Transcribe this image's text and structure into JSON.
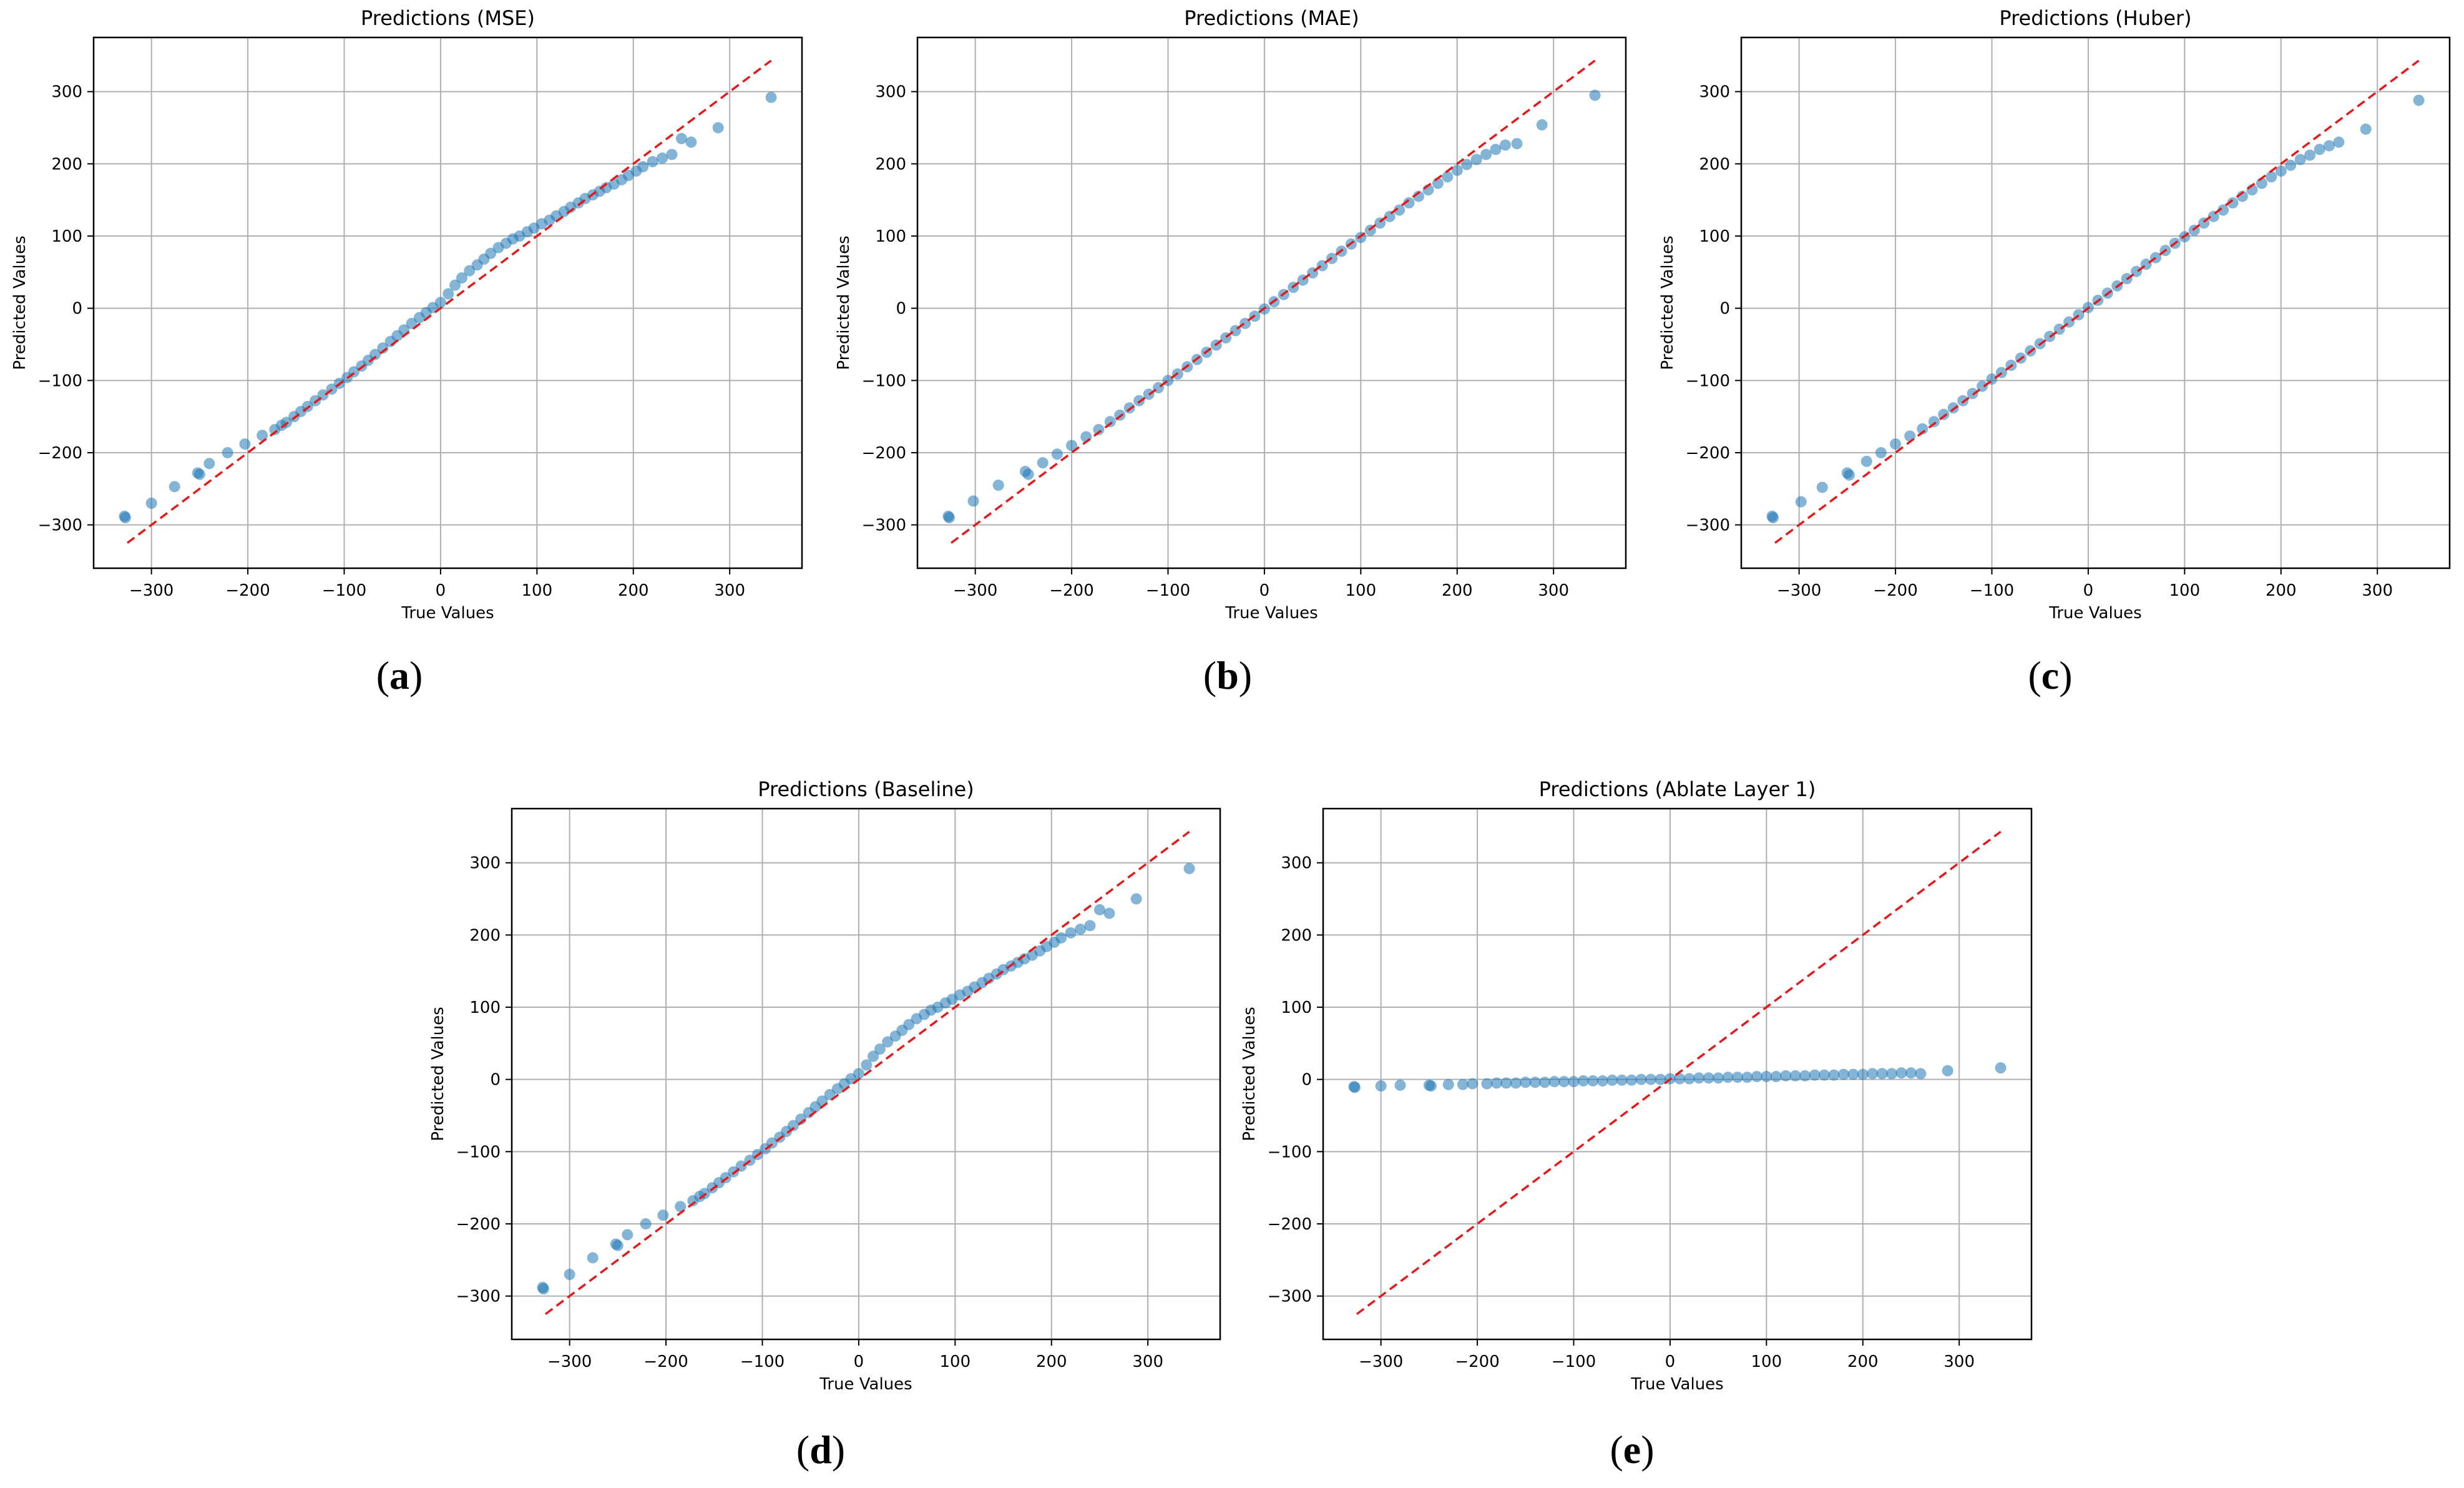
{
  "figure": {
    "captions": [
      "(a)",
      "(b)",
      "(c)",
      "(d)",
      "(e)"
    ],
    "caption_letters": [
      "a",
      "b",
      "c",
      "d",
      "e"
    ]
  },
  "chart_data": [
    {
      "type": "scatter",
      "title": "Predictions (MSE)",
      "xlabel": "True Values",
      "ylabel": "Predicted Values",
      "xlim": [
        -360,
        375
      ],
      "ylim": [
        -360,
        375
      ],
      "xticks": [
        -300,
        -200,
        -100,
        0,
        100,
        200,
        300
      ],
      "yticks": [
        -300,
        -200,
        -100,
        0,
        100,
        200,
        300
      ],
      "xtick_labels": [
        "−300",
        "−200",
        "−100",
        "0",
        "100",
        "200",
        "300"
      ],
      "ytick_labels": [
        "−300",
        "−200",
        "−100",
        "0",
        "100",
        "200",
        "300"
      ],
      "grid": true,
      "reference_line": {
        "from": [
          -325,
          -325
        ],
        "to": [
          343,
          343
        ],
        "color": "#e31a1c",
        "style": "dashed"
      },
      "point_color": "#1f77b4",
      "x": [
        -328,
        -327,
        -300,
        -276,
        -252,
        -250,
        -240,
        -221,
        -203,
        -185,
        -172,
        -165,
        -160,
        -152,
        -145,
        -138,
        -130,
        -122,
        -113,
        -105,
        -97,
        -90,
        -82,
        -75,
        -68,
        -60,
        -52,
        -45,
        -38,
        -30,
        -22,
        -15,
        -8,
        0,
        8,
        15,
        22,
        30,
        38,
        45,
        52,
        60,
        68,
        75,
        82,
        90,
        97,
        105,
        113,
        120,
        128,
        135,
        143,
        150,
        158,
        165,
        172,
        180,
        188,
        195,
        203,
        210,
        220,
        230,
        240,
        250,
        260,
        288,
        343
      ],
      "y": [
        -288,
        -290,
        -270,
        -247,
        -228,
        -230,
        -215,
        -200,
        -188,
        -176,
        -168,
        -162,
        -158,
        -150,
        -143,
        -136,
        -128,
        -120,
        -112,
        -104,
        -96,
        -88,
        -80,
        -72,
        -64,
        -55,
        -46,
        -38,
        -30,
        -21,
        -13,
        -6,
        1,
        8,
        20,
        32,
        42,
        52,
        60,
        68,
        76,
        84,
        90,
        96,
        100,
        106,
        111,
        117,
        122,
        128,
        134,
        140,
        146,
        152,
        157,
        162,
        167,
        172,
        178,
        184,
        190,
        196,
        203,
        208,
        213,
        235,
        230,
        250,
        292
      ]
    },
    {
      "type": "scatter",
      "title": "Predictions (MAE)",
      "xlabel": "True Values",
      "ylabel": "Predicted Values",
      "xlim": [
        -360,
        375
      ],
      "ylim": [
        -360,
        375
      ],
      "xticks": [
        -300,
        -200,
        -100,
        0,
        100,
        200,
        300
      ],
      "yticks": [
        -300,
        -200,
        -100,
        0,
        100,
        200,
        300
      ],
      "xtick_labels": [
        "−300",
        "−200",
        "−100",
        "0",
        "100",
        "200",
        "300"
      ],
      "ytick_labels": [
        "−300",
        "−200",
        "−100",
        "0",
        "100",
        "200",
        "300"
      ],
      "grid": true,
      "reference_line": {
        "from": [
          -325,
          -325
        ],
        "to": [
          343,
          343
        ],
        "color": "#e31a1c",
        "style": "dashed"
      },
      "point_color": "#1f77b4",
      "x": [
        -328,
        -327,
        -302,
        -276,
        -248,
        -245,
        -230,
        -215,
        -200,
        -185,
        -172,
        -160,
        -150,
        -140,
        -130,
        -120,
        -110,
        -100,
        -90,
        -80,
        -70,
        -60,
        -50,
        -40,
        -30,
        -20,
        -10,
        0,
        10,
        20,
        30,
        40,
        50,
        60,
        70,
        80,
        90,
        100,
        110,
        120,
        130,
        140,
        150,
        160,
        170,
        180,
        190,
        200,
        210,
        220,
        230,
        240,
        250,
        262,
        288,
        343
      ],
      "y": [
        -288,
        -290,
        -267,
        -245,
        -226,
        -230,
        -214,
        -202,
        -190,
        -178,
        -168,
        -157,
        -148,
        -138,
        -128,
        -119,
        -110,
        -100,
        -91,
        -81,
        -71,
        -61,
        -51,
        -41,
        -31,
        -21,
        -11,
        -1,
        9,
        19,
        29,
        39,
        49,
        59,
        69,
        79,
        89,
        98,
        108,
        118,
        127,
        136,
        146,
        155,
        164,
        173,
        182,
        191,
        199,
        206,
        213,
        220,
        226,
        228,
        254,
        295
      ]
    },
    {
      "type": "scatter",
      "title": "Predictions (Huber)",
      "xlabel": "True Values",
      "ylabel": "Predicted Values",
      "xlim": [
        -360,
        375
      ],
      "ylim": [
        -360,
        375
      ],
      "xticks": [
        -300,
        -200,
        -100,
        0,
        100,
        200,
        300
      ],
      "yticks": [
        -300,
        -200,
        -100,
        0,
        100,
        200,
        300
      ],
      "xtick_labels": [
        "−300",
        "−200",
        "−100",
        "0",
        "100",
        "200",
        "300"
      ],
      "ytick_labels": [
        "−300",
        "−200",
        "−100",
        "0",
        "100",
        "200",
        "300"
      ],
      "grid": true,
      "reference_line": {
        "from": [
          -325,
          -325
        ],
        "to": [
          343,
          343
        ],
        "color": "#e31a1c",
        "style": "dashed"
      },
      "point_color": "#1f77b4",
      "x": [
        -328,
        -327,
        -298,
        -276,
        -250,
        -248,
        -230,
        -215,
        -200,
        -185,
        -172,
        -160,
        -150,
        -140,
        -130,
        -120,
        -110,
        -100,
        -90,
        -80,
        -70,
        -60,
        -50,
        -40,
        -30,
        -20,
        -10,
        0,
        10,
        20,
        30,
        40,
        50,
        60,
        70,
        80,
        90,
        100,
        110,
        120,
        130,
        140,
        150,
        160,
        170,
        180,
        190,
        200,
        210,
        220,
        230,
        240,
        250,
        260,
        288,
        343
      ],
      "y": [
        -288,
        -290,
        -268,
        -248,
        -228,
        -231,
        -212,
        -200,
        -188,
        -177,
        -167,
        -157,
        -147,
        -138,
        -128,
        -118,
        -108,
        -98,
        -89,
        -79,
        -69,
        -59,
        -49,
        -39,
        -29,
        -19,
        -9,
        1,
        11,
        21,
        31,
        41,
        51,
        61,
        70,
        80,
        90,
        99,
        108,
        118,
        127,
        136,
        146,
        155,
        164,
        173,
        182,
        190,
        198,
        206,
        212,
        220,
        225,
        230,
        248,
        288
      ]
    },
    {
      "type": "scatter",
      "title": "Predictions (Baseline)",
      "xlabel": "True Values",
      "ylabel": "Predicted Values",
      "xlim": [
        -360,
        375
      ],
      "ylim": [
        -360,
        375
      ],
      "xticks": [
        -300,
        -200,
        -100,
        0,
        100,
        200,
        300
      ],
      "yticks": [
        -300,
        -200,
        -100,
        0,
        100,
        200,
        300
      ],
      "xtick_labels": [
        "−300",
        "−200",
        "−100",
        "0",
        "100",
        "200",
        "300"
      ],
      "ytick_labels": [
        "−300",
        "−200",
        "−100",
        "0",
        "100",
        "200",
        "300"
      ],
      "grid": true,
      "reference_line": {
        "from": [
          -325,
          -325
        ],
        "to": [
          343,
          343
        ],
        "color": "#e31a1c",
        "style": "dashed"
      },
      "point_color": "#1f77b4",
      "x": [
        -328,
        -327,
        -300,
        -276,
        -252,
        -250,
        -240,
        -221,
        -203,
        -185,
        -172,
        -165,
        -160,
        -152,
        -145,
        -138,
        -130,
        -122,
        -113,
        -105,
        -97,
        -90,
        -82,
        -75,
        -68,
        -60,
        -52,
        -45,
        -38,
        -30,
        -22,
        -15,
        -8,
        0,
        8,
        15,
        22,
        30,
        38,
        45,
        52,
        60,
        68,
        75,
        82,
        90,
        97,
        105,
        113,
        120,
        128,
        135,
        143,
        150,
        158,
        165,
        172,
        180,
        188,
        195,
        203,
        210,
        220,
        230,
        240,
        250,
        260,
        288,
        343
      ],
      "y": [
        -288,
        -290,
        -270,
        -247,
        -228,
        -230,
        -215,
        -200,
        -188,
        -176,
        -168,
        -162,
        -158,
        -150,
        -143,
        -136,
        -128,
        -120,
        -112,
        -104,
        -96,
        -88,
        -80,
        -72,
        -64,
        -55,
        -46,
        -38,
        -30,
        -21,
        -13,
        -6,
        1,
        8,
        20,
        32,
        42,
        52,
        60,
        68,
        76,
        84,
        90,
        96,
        100,
        106,
        111,
        117,
        122,
        128,
        134,
        140,
        146,
        152,
        157,
        162,
        167,
        172,
        178,
        184,
        190,
        196,
        203,
        208,
        213,
        235,
        230,
        250,
        292
      ]
    },
    {
      "type": "scatter",
      "title": "Predictions (Ablate Layer 1)",
      "xlabel": "True Values",
      "ylabel": "Predicted Values",
      "xlim": [
        -360,
        375
      ],
      "ylim": [
        -360,
        375
      ],
      "xticks": [
        -300,
        -200,
        -100,
        0,
        100,
        200,
        300
      ],
      "yticks": [
        -300,
        -200,
        -100,
        0,
        100,
        200,
        300
      ],
      "xtick_labels": [
        "−300",
        "−200",
        "−100",
        "0",
        "100",
        "200",
        "300"
      ],
      "ytick_labels": [
        "−300",
        "−200",
        "−100",
        "0",
        "100",
        "200",
        "300"
      ],
      "grid": true,
      "reference_line": {
        "from": [
          -325,
          -325
        ],
        "to": [
          343,
          343
        ],
        "color": "#e31a1c",
        "style": "dashed"
      },
      "point_color": "#1f77b4",
      "x": [
        -328,
        -327,
        -300,
        -280,
        -250,
        -248,
        -230,
        -215,
        -205,
        -190,
        -180,
        -170,
        -160,
        -150,
        -140,
        -130,
        -120,
        -110,
        -100,
        -90,
        -80,
        -70,
        -60,
        -50,
        -40,
        -30,
        -20,
        -10,
        0,
        10,
        20,
        30,
        40,
        50,
        60,
        70,
        80,
        90,
        100,
        110,
        120,
        130,
        140,
        150,
        160,
        170,
        180,
        190,
        200,
        210,
        220,
        230,
        240,
        250,
        260,
        288,
        343
      ],
      "y": [
        -10,
        -11,
        -9,
        -8,
        -8,
        -9,
        -7,
        -7,
        -6,
        -6,
        -5,
        -5,
        -5,
        -4,
        -4,
        -4,
        -3,
        -3,
        -3,
        -2,
        -2,
        -2,
        -1,
        -1,
        -1,
        0,
        0,
        0,
        1,
        1,
        1,
        2,
        2,
        2,
        3,
        3,
        3,
        4,
        4,
        4,
        5,
        5,
        5,
        6,
        6,
        6,
        7,
        7,
        7,
        8,
        8,
        8,
        9,
        9,
        8,
        12,
        16
      ]
    }
  ]
}
